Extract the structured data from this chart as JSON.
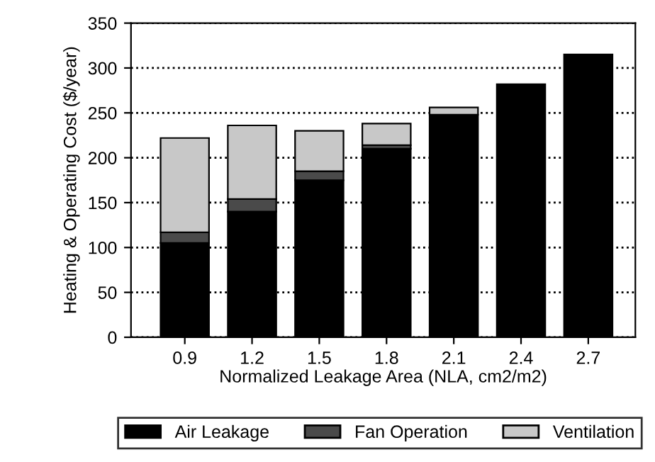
{
  "chart_data": {
    "type": "bar",
    "stacked": true,
    "xlabel": "Normalized Leakage Area (NLA, cm2/m2)",
    "ylabel": "Heating & Operating Cost ($/year)",
    "categories": [
      "0.9",
      "1.2",
      "1.5",
      "1.8",
      "2.1",
      "2.4",
      "2.7"
    ],
    "series": [
      {
        "name": "Air Leakage",
        "color": "#000000",
        "values": [
          105,
          140,
          175,
          210,
          248,
          282,
          315
        ]
      },
      {
        "name": "Fan Operation",
        "color": "#4a4a4a",
        "values": [
          12,
          14,
          10,
          4,
          null,
          null,
          null
        ]
      },
      {
        "name": "Ventilation",
        "color": "#c8c8c8",
        "values": [
          105,
          82,
          45,
          24,
          8,
          null,
          null
        ]
      }
    ],
    "ylim": [
      0,
      350
    ],
    "yticks": [
      0,
      50,
      100,
      150,
      200,
      250,
      300,
      350
    ],
    "grid": "y",
    "line_style": "dotted",
    "legend": "bottom"
  }
}
